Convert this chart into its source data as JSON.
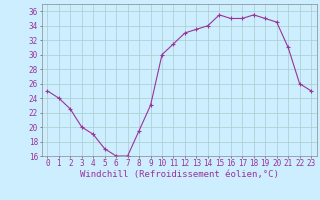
{
  "x": [
    0,
    1,
    2,
    3,
    4,
    5,
    6,
    7,
    8,
    9,
    10,
    11,
    12,
    13,
    14,
    15,
    16,
    17,
    18,
    19,
    20,
    21,
    22,
    23
  ],
  "y": [
    25.0,
    24.0,
    22.5,
    20.0,
    19.0,
    17.0,
    16.0,
    16.0,
    19.5,
    23.0,
    30.0,
    31.5,
    33.0,
    33.5,
    34.0,
    35.5,
    35.0,
    35.0,
    35.5,
    35.0,
    34.5,
    31.0,
    26.0,
    25.0
  ],
  "line_color": "#993399",
  "marker_color": "#993399",
  "bg_color": "#cceeff",
  "grid_color": "#aacccc",
  "xlabel": "Windchill (Refroidissement éolien,°C)",
  "ylabel": "",
  "ylim": [
    16,
    37
  ],
  "xlim": [
    -0.5,
    23.5
  ],
  "yticks": [
    16,
    18,
    20,
    22,
    24,
    26,
    28,
    30,
    32,
    34,
    36
  ],
  "xticks": [
    0,
    1,
    2,
    3,
    4,
    5,
    6,
    7,
    8,
    9,
    10,
    11,
    12,
    13,
    14,
    15,
    16,
    17,
    18,
    19,
    20,
    21,
    22,
    23
  ],
  "tick_label_fontsize": 5.5,
  "xlabel_fontsize": 6.5
}
